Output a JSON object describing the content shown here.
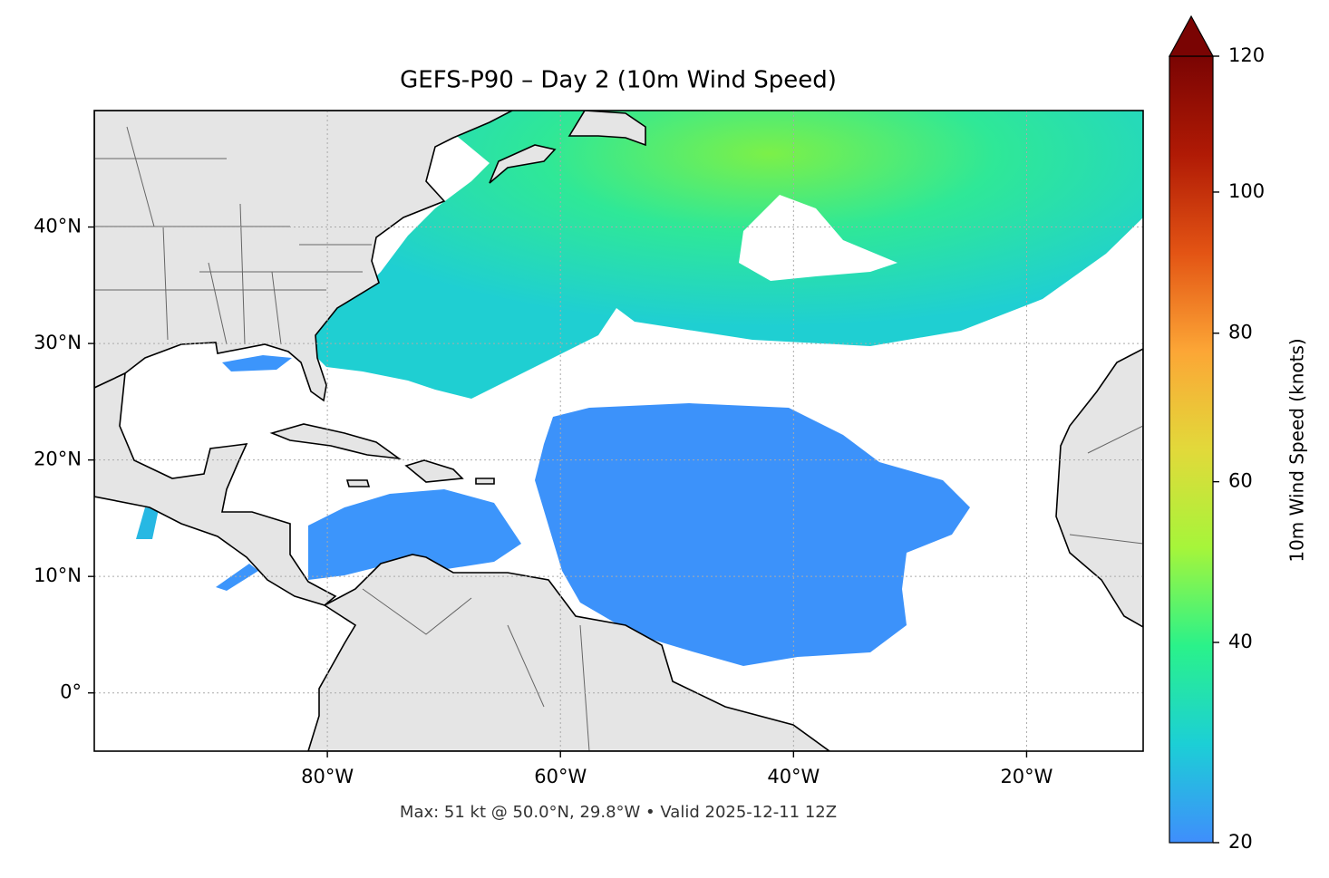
{
  "chart_data": {
    "type": "map",
    "title": "GEFS-P90 – Day 2 (10m Wind Speed)",
    "footer": "Max: 51 kt @ 50.0°N, 29.8°W • Valid 2025-12-11 12Z",
    "xlim": [
      -100,
      -10
    ],
    "ylim": [
      -5,
      50
    ],
    "xticks": [
      {
        "value": -80,
        "label": "80°W"
      },
      {
        "value": -60,
        "label": "60°W"
      },
      {
        "value": -40,
        "label": "40°W"
      },
      {
        "value": -20,
        "label": "20°W"
      }
    ],
    "yticks": [
      {
        "value": 0,
        "label": "0°"
      },
      {
        "value": 10,
        "label": "10°N"
      },
      {
        "value": 20,
        "label": "20°N"
      },
      {
        "value": 30,
        "label": "30°N"
      },
      {
        "value": 40,
        "label": "40°N"
      }
    ],
    "grid": true,
    "colorbar": {
      "label": "10m Wind Speed (knots)",
      "lim": [
        20,
        120
      ],
      "ticks": [
        20,
        40,
        60,
        80,
        100,
        120
      ],
      "colors": [
        "#3f8efc",
        "#1ccfd6",
        "#2af28a",
        "#a6f53a",
        "#e2d93a",
        "#fca636",
        "#e35414",
        "#b01a05",
        "#7a0403"
      ],
      "extend": "max"
    }
  }
}
